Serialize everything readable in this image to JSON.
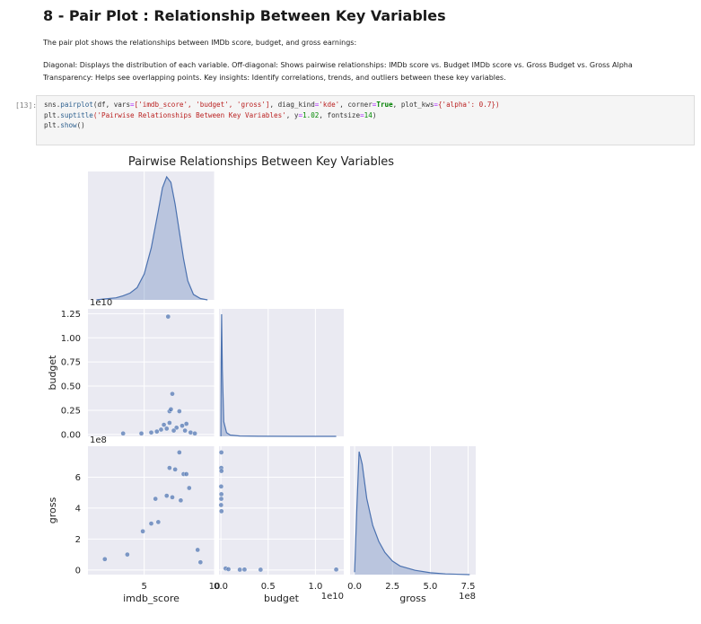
{
  "notebook": {
    "heading": "8 - Pair Plot : Relationship Between Key Variables",
    "paragraph1": "The pair plot shows the relationships between IMDb score, budget, and gross earnings:",
    "paragraph2": "Diagonal: Displays the distribution of each variable. Off-diagonal: Shows pairwise relationships: IMDb score vs. Budget IMDb score vs. Gross Budget vs. Gross Alpha",
    "paragraph3": "Transparency: Helps see overlapping points. Key insights: Identify correlations, trends, and outliers between these key variables.",
    "cell_prompt": "[13]:",
    "code": {
      "l1_a": "sns.",
      "l1_b": "pairplot",
      "l1_c": "(df, vars",
      "l1_d": "=",
      "l1_e": "['imdb_score', 'budget', 'gross']",
      "l1_f": ", diag_kind",
      "l1_g": "'kde'",
      "l1_h": ", corner",
      "l1_i": "True",
      "l1_j": ", plot_kws",
      "l1_k": "{'alpha': 0.7})",
      "l2_a": "plt.",
      "l2_b": "suptitle",
      "l2_c": "('Pairwise Relationships Between Key Variables'",
      "l2_d": ", y",
      "l2_e": "1.02",
      "l2_f": ", fontsize",
      "l2_g": "14",
      "l2_h": ")",
      "l3_a": "plt.",
      "l3_b": "show",
      "l3_c": "()"
    }
  },
  "colors": {
    "series": "#4c72b0",
    "panel_bg": "#eaeaf2",
    "grid": "#ffffff"
  },
  "chart_data": {
    "type": "scatter",
    "title": "Pairwise Relationships Between Key Variables",
    "variables": [
      "imdb_score",
      "budget",
      "gross"
    ],
    "diag_kind": "kde",
    "corner": true,
    "alpha": 0.7,
    "axes": {
      "imdb_score": {
        "label": "imdb_score",
        "lim": [
          1,
          10
        ],
        "ticks": [
          5,
          10
        ],
        "tick_labels": [
          "5",
          "10"
        ]
      },
      "budget": {
        "label": "budget",
        "offset": "1e10",
        "lim": [
          -0.02,
          1.3
        ],
        "ticks": [
          0,
          0.25,
          0.5,
          0.75,
          1.0,
          1.25
        ],
        "tick_labels": [
          "0.00",
          "0.25",
          "0.50",
          "0.75",
          "1.00",
          "1.25"
        ],
        "x_ticks": [
          0,
          0.5,
          1.0
        ],
        "x_tick_labels": [
          "0.0",
          "0.5",
          "1.0"
        ]
      },
      "gross": {
        "label": "gross",
        "offset": "1e8",
        "lim": [
          -0.3,
          8.0
        ],
        "ticks": [
          0,
          2,
          4,
          6
        ],
        "tick_labels": [
          "0",
          "2",
          "4",
          "6"
        ],
        "x_ticks": [
          0,
          2.5,
          5.0,
          7.5
        ],
        "x_tick_labels": [
          "0.0",
          "2.5",
          "5.0",
          "7.5"
        ]
      }
    },
    "kde": {
      "imdb_score": {
        "x": [
          1.6,
          2,
          2.5,
          3,
          3.5,
          4,
          4.5,
          5,
          5.5,
          6,
          6.3,
          6.6,
          6.9,
          7.2,
          7.5,
          7.8,
          8.1,
          8.5,
          9,
          9.5
        ],
        "y": [
          0.0,
          0.005,
          0.01,
          0.015,
          0.03,
          0.05,
          0.09,
          0.19,
          0.38,
          0.65,
          0.82,
          0.9,
          0.86,
          0.7,
          0.5,
          0.3,
          0.14,
          0.04,
          0.01,
          0.0
        ]
      },
      "budget": {
        "x": [
          0,
          0.003,
          0.008,
          0.015,
          0.03,
          0.06,
          0.1,
          0.2,
          0.4,
          0.8,
          1.22
        ],
        "y": [
          0,
          0.6,
          1.0,
          0.55,
          0.12,
          0.03,
          0.01,
          0.003,
          0.001,
          0.0,
          0.0
        ]
      },
      "gross": {
        "x": [
          0,
          0.15,
          0.3,
          0.5,
          0.8,
          1.2,
          1.6,
          2.0,
          2.5,
          3.0,
          4.0,
          5.0,
          6.0,
          7.6
        ],
        "y": [
          0.02,
          0.55,
          1.0,
          0.9,
          0.62,
          0.4,
          0.27,
          0.18,
          0.11,
          0.07,
          0.035,
          0.015,
          0.006,
          0.0
        ]
      }
    },
    "scatter": {
      "imdb_score_vs_budget": [
        [
          6.7,
          1.22
        ],
        [
          7.0,
          0.42
        ],
        [
          7.5,
          0.24
        ],
        [
          6.8,
          0.24
        ],
        [
          6.9,
          0.26
        ],
        [
          6.4,
          0.1
        ],
        [
          6.8,
          0.12
        ],
        [
          7.3,
          0.07
        ],
        [
          7.7,
          0.09
        ],
        [
          8.0,
          0.11
        ],
        [
          6.2,
          0.05
        ],
        [
          5.9,
          0.03
        ],
        [
          7.1,
          0.04
        ],
        [
          8.3,
          0.02
        ],
        [
          6.6,
          0.06
        ],
        [
          5.5,
          0.02
        ],
        [
          4.8,
          0.01
        ],
        [
          7.9,
          0.04
        ],
        [
          8.6,
          0.01
        ],
        [
          3.5,
          0.01
        ]
      ],
      "imdb_score_vs_gross": [
        [
          7.5,
          7.6
        ],
        [
          6.8,
          6.6
        ],
        [
          7.2,
          6.5
        ],
        [
          7.8,
          6.2
        ],
        [
          8.0,
          6.2
        ],
        [
          6.6,
          4.8
        ],
        [
          8.2,
          5.3
        ],
        [
          5.8,
          4.6
        ],
        [
          7.0,
          4.7
        ],
        [
          7.6,
          4.5
        ],
        [
          5.5,
          3.0
        ],
        [
          6.0,
          3.1
        ],
        [
          4.9,
          2.5
        ],
        [
          3.8,
          1.0
        ],
        [
          2.2,
          0.7
        ],
        [
          8.8,
          1.3
        ],
        [
          9.0,
          0.5
        ]
      ],
      "budget_vs_gross": [
        [
          0.005,
          7.6
        ],
        [
          0.004,
          6.6
        ],
        [
          0.006,
          6.4
        ],
        [
          0.003,
          5.4
        ],
        [
          0.005,
          4.9
        ],
        [
          0.004,
          4.6
        ],
        [
          0.002,
          4.2
        ],
        [
          0.006,
          3.8
        ],
        [
          0.05,
          0.1
        ],
        [
          0.08,
          0.05
        ],
        [
          0.2,
          0.02
        ],
        [
          0.25,
          0.03
        ],
        [
          0.42,
          0.02
        ],
        [
          1.22,
          0.03
        ]
      ]
    }
  }
}
